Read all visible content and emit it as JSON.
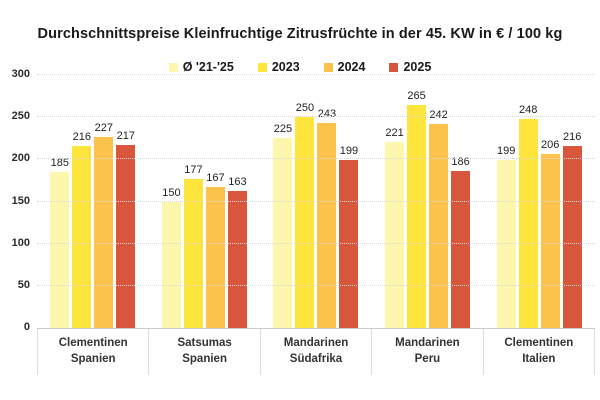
{
  "chart_data": {
    "type": "bar",
    "title": "Durchschnittspreise Kleinfruchtige Zitrusfrüchte in der 45. KW in € / 100 kg",
    "xlabel": "",
    "ylabel": "",
    "ylim": [
      0,
      300
    ],
    "yticks": [
      0,
      50,
      100,
      150,
      200,
      250,
      300
    ],
    "grid": "horizontal-dotted",
    "legend_position": "top-center",
    "categories": [
      [
        "Clementinen",
        "Spanien"
      ],
      [
        "Satsumas",
        "Spanien"
      ],
      [
        "Mandarinen",
        "Südafrika"
      ],
      [
        "Mandarinen",
        "Peru"
      ],
      [
        "Clementinen",
        "Italien"
      ]
    ],
    "series": [
      {
        "name": "Ø '21-'25",
        "color": "#FCF7AD",
        "values": [
          185,
          150,
          225,
          221,
          199
        ]
      },
      {
        "name": "2023",
        "color": "#FEE53C",
        "values": [
          216,
          177,
          250,
          265,
          248
        ]
      },
      {
        "name": "2024",
        "color": "#FBC34C",
        "values": [
          227,
          167,
          243,
          242,
          206
        ]
      },
      {
        "name": "2025",
        "color": "#D8573C",
        "values": [
          217,
          163,
          199,
          186,
          216
        ]
      }
    ]
  }
}
